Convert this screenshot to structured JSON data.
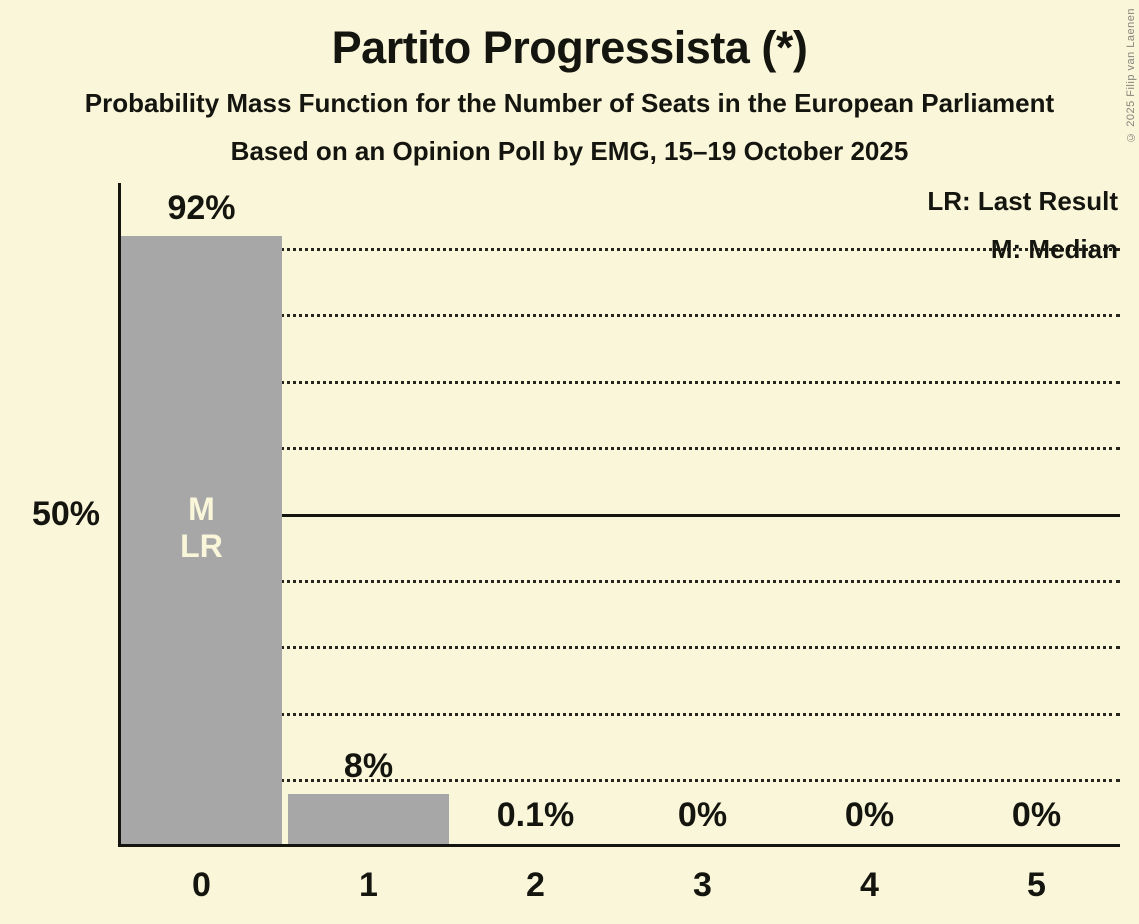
{
  "page": {
    "background_color": "#faf6da",
    "text_color": "#15150f",
    "copyright": "© 2025 Filip van Laenen"
  },
  "chart_data": {
    "type": "bar",
    "title": "Partito Progressista (*)",
    "subtitle": "Probability Mass Function for the Number of Seats in the European Parliament",
    "subsubtitle": "Based on an Opinion Poll by EMG, 15–19 October 2025",
    "xlabel": "",
    "ylabel": "",
    "categories": [
      "0",
      "1",
      "2",
      "3",
      "4",
      "5"
    ],
    "values": [
      92,
      8,
      0.1,
      0,
      0,
      0
    ],
    "value_labels": [
      "92%",
      "8%",
      "0.1%",
      "0%",
      "0%",
      "0%"
    ],
    "ylim": [
      0,
      100
    ],
    "y_axis_tick": {
      "value": 50,
      "label": "50%"
    },
    "gridlines": {
      "dotted_every_pct": 10,
      "solid_at_pct": 50,
      "grid_on": true
    },
    "legend_position": "top-right",
    "legend": [
      {
        "key": "LR",
        "label": "LR: Last Result"
      },
      {
        "key": "M",
        "label": "M: Median"
      }
    ],
    "bar_annotations": [
      {
        "category_index": 0,
        "lines": [
          "M",
          "LR"
        ],
        "center_pct": 48
      }
    ],
    "bar_color": "#a7a7a7",
    "annotation_text_color": "#faf6da",
    "small_value_threshold_pct": 5
  }
}
